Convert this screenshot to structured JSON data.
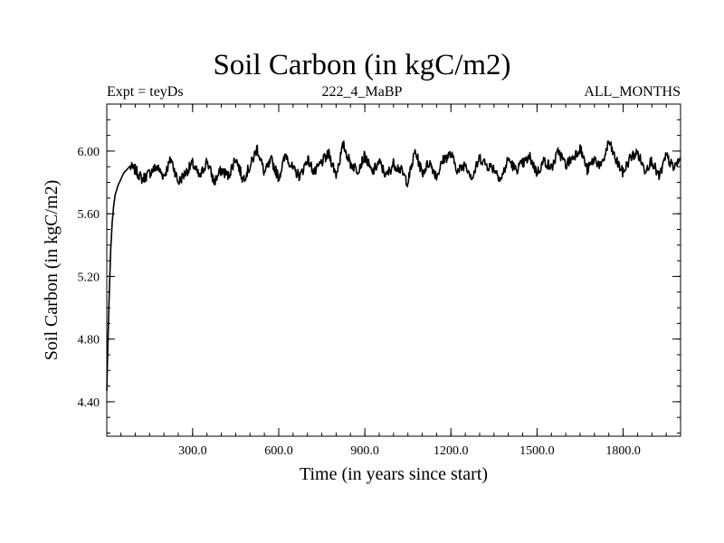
{
  "chart_data": {
    "type": "line",
    "title": "Soil Carbon (in kgC/m2)",
    "subtitle_left": "Expt = teyDs",
    "subtitle_center": "222_4_MaBP",
    "subtitle_right": "ALL_MONTHS",
    "xlabel": "Time (in years since start)",
    "ylabel": "Soil Carbon (in kgC/m2)",
    "xlim": [
      1,
      2000
    ],
    "ylim": [
      4.18,
      6.3
    ],
    "xticks": [
      300,
      600,
      900,
      1200,
      1500,
      1800
    ],
    "xtick_labels": [
      "300.0",
      "600.0",
      "900.0",
      "1200.0",
      "1500.0",
      "1800.0"
    ],
    "yticks": [
      4.4,
      4.8,
      5.2,
      5.6,
      6.0
    ],
    "ytick_labels": [
      "4.40",
      "4.80",
      "5.20",
      "5.60",
      "6.00"
    ],
    "series": [
      {
        "name": "Soil Carbon",
        "color": "#000000",
        "x": [
          1,
          5,
          10,
          15,
          20,
          25,
          30,
          40,
          50,
          60,
          70,
          80,
          90,
          100,
          125,
          150,
          175,
          200,
          225,
          250,
          275,
          300,
          325,
          350,
          375,
          400,
          425,
          450,
          475,
          500,
          525,
          550,
          575,
          600,
          625,
          650,
          675,
          700,
          725,
          750,
          775,
          800,
          825,
          850,
          875,
          900,
          925,
          950,
          975,
          1000,
          1025,
          1050,
          1075,
          1100,
          1125,
          1150,
          1175,
          1200,
          1225,
          1250,
          1275,
          1300,
          1325,
          1350,
          1375,
          1400,
          1425,
          1450,
          1475,
          1500,
          1525,
          1550,
          1575,
          1600,
          1625,
          1650,
          1675,
          1700,
          1725,
          1750,
          1775,
          1800,
          1825,
          1850,
          1875,
          1900,
          1925,
          1950,
          1975,
          2000
        ],
        "values": [
          4.47,
          4.78,
          5.12,
          5.38,
          5.55,
          5.65,
          5.72,
          5.78,
          5.82,
          5.86,
          5.88,
          5.9,
          5.89,
          5.88,
          5.82,
          5.86,
          5.9,
          5.84,
          5.95,
          5.8,
          5.86,
          5.92,
          5.83,
          5.94,
          5.8,
          5.88,
          5.84,
          5.96,
          5.82,
          5.9,
          6.02,
          5.86,
          5.94,
          5.83,
          5.98,
          5.88,
          5.84,
          5.95,
          5.86,
          5.93,
          5.98,
          5.85,
          6.04,
          5.92,
          5.88,
          5.97,
          5.86,
          5.93,
          5.84,
          5.92,
          5.88,
          5.8,
          6.0,
          5.86,
          5.93,
          5.84,
          5.95,
          5.98,
          5.87,
          5.92,
          5.83,
          5.96,
          5.91,
          5.89,
          5.82,
          5.95,
          5.88,
          5.92,
          5.96,
          5.86,
          5.94,
          5.89,
          6.0,
          5.91,
          5.96,
          6.02,
          5.88,
          5.95,
          5.9,
          6.06,
          5.94,
          5.86,
          5.96,
          5.99,
          5.88,
          5.94,
          5.83,
          5.97,
          5.89,
          5.95
        ]
      }
    ]
  }
}
